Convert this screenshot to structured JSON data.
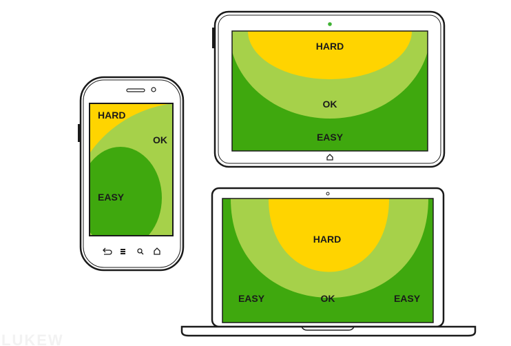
{
  "colors": {
    "hard": "#ffd400",
    "ok": "#a6d14a",
    "easy": "#3fa80e",
    "frame": "#1a1a1a",
    "camera_led": "#3fb234"
  },
  "icons": {
    "phone_nav": [
      "back-icon",
      "menu-icon",
      "search-icon",
      "home-icon"
    ],
    "tablet_home": "home-icon"
  },
  "phone": {
    "labels": {
      "hard": "HARD",
      "ok": "OK",
      "easy": "EASY"
    }
  },
  "tablet": {
    "labels": {
      "hard": "HARD",
      "ok": "OK",
      "easy": "EASY"
    }
  },
  "laptop": {
    "labels": {
      "hard": "HARD",
      "ok": "OK",
      "easy_left": "EASY",
      "easy_right": "EASY"
    }
  }
}
